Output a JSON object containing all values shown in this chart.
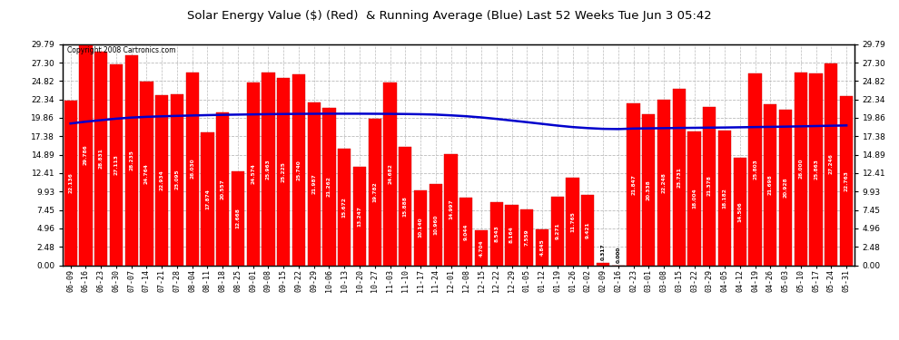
{
  "title": "Solar Energy Value ($) (Red)  & Running Average (Blue) Last 52 Weeks Tue Jun 3 05:42",
  "copyright": "Copyright 2008 Cartronics.com",
  "bar_color": "#FF0000",
  "line_color": "#0000CC",
  "bg_color": "#FFFFFF",
  "plot_bg_color": "#FFFFFF",
  "grid_color": "#BBBBBB",
  "ylim": [
    0,
    29.79
  ],
  "yticks": [
    0.0,
    2.48,
    4.96,
    7.45,
    9.93,
    12.41,
    14.89,
    17.38,
    19.86,
    22.34,
    24.82,
    27.3,
    29.79
  ],
  "categories": [
    "06-09",
    "06-16",
    "06-23",
    "06-30",
    "07-07",
    "07-14",
    "07-21",
    "07-28",
    "08-04",
    "08-11",
    "08-18",
    "08-25",
    "09-01",
    "09-08",
    "09-15",
    "09-22",
    "09-29",
    "10-06",
    "10-13",
    "10-20",
    "10-27",
    "11-03",
    "11-10",
    "11-17",
    "11-24",
    "12-01",
    "12-08",
    "12-15",
    "12-22",
    "12-29",
    "01-05",
    "01-12",
    "01-19",
    "01-26",
    "02-02",
    "02-09",
    "02-16",
    "02-23",
    "03-01",
    "03-08",
    "03-15",
    "03-22",
    "03-29",
    "04-05",
    "04-12",
    "04-19",
    "04-26",
    "05-03",
    "05-10",
    "05-17",
    "05-24",
    "05-31"
  ],
  "values": [
    22.136,
    29.786,
    28.831,
    27.113,
    28.235,
    24.764,
    22.934,
    23.095,
    26.03,
    17.874,
    20.557,
    12.668,
    24.574,
    25.963,
    25.225,
    25.74,
    21.987,
    21.262,
    15.672,
    13.247,
    19.782,
    24.682,
    15.888,
    10.14,
    10.96,
    14.997,
    9.044,
    4.704,
    8.543,
    8.164,
    7.559,
    4.845,
    9.271,
    11.765,
    9.421,
    0.317,
    0.0,
    21.847,
    20.338,
    22.248,
    23.731,
    18.004,
    21.378,
    18.182,
    14.506,
    25.803,
    21.698,
    20.928,
    26.0,
    25.863,
    27.246,
    22.763
  ],
  "running_avg": [
    19.1,
    19.35,
    19.55,
    19.75,
    19.9,
    20.0,
    20.07,
    20.13,
    20.18,
    20.23,
    20.27,
    20.3,
    20.33,
    20.36,
    20.38,
    20.4,
    20.41,
    20.42,
    20.42,
    20.42,
    20.41,
    20.4,
    20.38,
    20.35,
    20.3,
    20.2,
    20.08,
    19.92,
    19.72,
    19.5,
    19.28,
    19.05,
    18.82,
    18.62,
    18.48,
    18.38,
    18.35,
    18.42,
    18.45,
    18.47,
    18.5,
    18.52,
    18.54,
    18.56,
    18.59,
    18.62,
    18.65,
    18.68,
    18.72,
    18.76,
    18.8,
    18.84
  ]
}
